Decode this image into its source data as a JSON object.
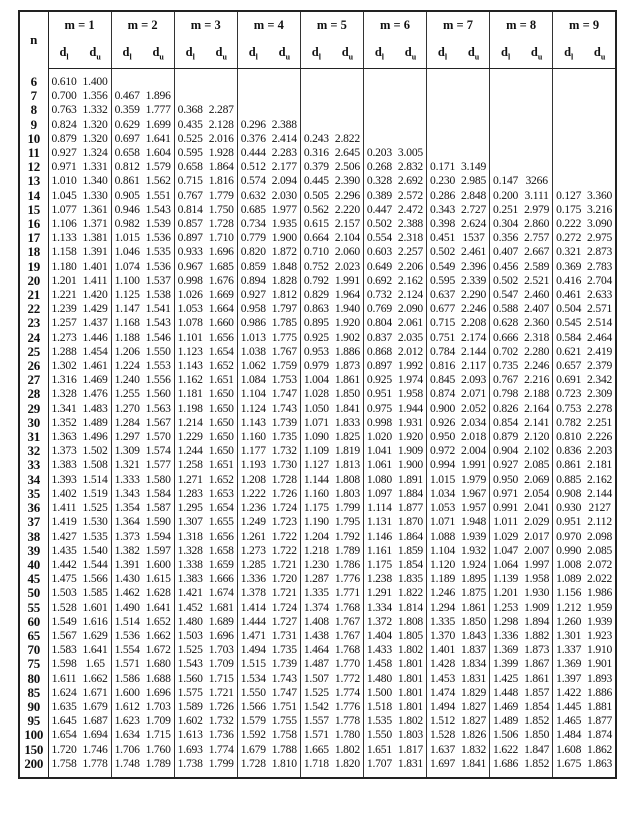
{
  "header": {
    "n_label": "n",
    "groups": [
      "m = 1",
      "m = 2",
      "m = 3",
      "m = 4",
      "m = 5",
      "m = 6",
      "m = 7",
      "m = 8",
      "m = 9"
    ],
    "dl": {
      "base": "d",
      "sub": "l"
    },
    "du": {
      "base": "d",
      "sub": "u"
    }
  },
  "rows": [
    {
      "n": "6",
      "v": [
        "0.610",
        "1.400"
      ]
    },
    {
      "n": "7",
      "v": [
        "0.700",
        "1.356",
        "0.467",
        "1.896"
      ]
    },
    {
      "n": "8",
      "v": [
        "0.763",
        "1.332",
        "0.359",
        "1.777",
        "0.368",
        "2.287"
      ]
    },
    {
      "n": "9",
      "v": [
        "0.824",
        "1.320",
        "0.629",
        "1.699",
        "0.435",
        "2.128",
        "0.296",
        "2.388"
      ]
    },
    {
      "n": "10",
      "v": [
        "0.879",
        "1.320",
        "0.697",
        "1.641",
        "0.525",
        "2.016",
        "0.376",
        "2.414",
        "0.243",
        "2.822"
      ]
    },
    {
      "n": "11",
      "v": [
        "0.927",
        "1.324",
        "0.658",
        "1.604",
        "0.595",
        "1.928",
        "0.444",
        "2.283",
        "0.316",
        "2.645",
        "0.203",
        "3.005"
      ]
    },
    {
      "n": "12",
      "v": [
        "0.971",
        "1.331",
        "0.812",
        "1.579",
        "0.658",
        "1.864",
        "0.512",
        "2.177",
        "0.379",
        "2.506",
        "0.268",
        "2.832",
        "0.171",
        "3.149"
      ]
    },
    {
      "n": "13",
      "v": [
        "1.010",
        "1.340",
        "0.861",
        "1.562",
        "0.715",
        "1.816",
        "0.574",
        "2.094",
        "0.445",
        "2.390",
        "0.328",
        "2.692",
        "0.230",
        "2.985",
        "0.147",
        "3266"
      ]
    },
    {
      "n": "14",
      "v": [
        "1.045",
        "1.330",
        "0.905",
        "1.551",
        "0.767",
        "1.779",
        "0.632",
        "2.030",
        "0.505",
        "2.296",
        "0.389",
        "2.572",
        "0.286",
        "2.848",
        "0.200",
        "3.111",
        "0.127",
        "3.360"
      ]
    },
    {
      "n": "15",
      "v": [
        "1.077",
        "1.361",
        "0.946",
        "1.543",
        "0.814",
        "1.750",
        "0.685",
        "1.977",
        "0.562",
        "2.220",
        "0.447",
        "2.472",
        "0.343",
        "2.727",
        "0.251",
        "2.979",
        "0.175",
        "3.216"
      ]
    },
    {
      "n": "16",
      "v": [
        "1.106",
        "1.371",
        "0.982",
        "1.539",
        "0.857",
        "1.728",
        "0.734",
        "1.935",
        "0.615",
        "2.157",
        "0.502",
        "2.388",
        "0.398",
        "2.624",
        "0.304",
        "2.860",
        "0.222",
        "3.090"
      ]
    },
    {
      "n": "17",
      "v": [
        "1.133",
        "1.381",
        "1.015",
        "1.536",
        "0.897",
        "1.710",
        "0.779",
        "1.900",
        "0.664",
        "2.104",
        "0.554",
        "2.318",
        "0.451",
        "1537",
        "0.356",
        "2.757",
        "0.272",
        "2.975"
      ]
    },
    {
      "n": "18",
      "v": [
        "1.158",
        "1.391",
        "1.046",
        "1.535",
        "0.933",
        "1.696",
        "0.820",
        "1.872",
        "0.710",
        "2.060",
        "0.603",
        "2.257",
        "0.502",
        "2.461",
        "0.407",
        "2.667",
        "0.321",
        "2.873"
      ]
    },
    {
      "n": "19",
      "v": [
        "1.180",
        "1.401",
        "1.074",
        "1.536",
        "0.967",
        "1.685",
        "0.859",
        "1.848",
        "0.752",
        "2.023",
        "0.649",
        "2.206",
        "0.549",
        "2.396",
        "0.456",
        "2.589",
        "0.369",
        "2.783"
      ]
    },
    {
      "n": "20",
      "v": [
        "1.201",
        "1.411",
        "1.100",
        "1.537",
        "0.998",
        "1.676",
        "0.894",
        "1.828",
        "0.792",
        "1.991",
        "0.692",
        "2.162",
        "0.595",
        "2.339",
        "0.502",
        "2.521",
        "0.416",
        "2.704"
      ]
    },
    {
      "n": "21",
      "v": [
        "1.221",
        "1.420",
        "1.125",
        "1.538",
        "1.026",
        "1.669",
        "0.927",
        "1.812",
        "0.829",
        "1.964",
        "0.732",
        "2.124",
        "0.637",
        "2.290",
        "0.547",
        "2.460",
        "0.461",
        "2.633"
      ]
    },
    {
      "n": "22",
      "v": [
        "1.239",
        "1.429",
        "1.147",
        "1.541",
        "1.053",
        "1.664",
        "0.958",
        "1.797",
        "0.863",
        "1.940",
        "0.769",
        "2.090",
        "0.677",
        "2.246",
        "0.588",
        "2.407",
        "0.504",
        "2.571"
      ]
    },
    {
      "n": "23",
      "v": [
        "1.257",
        "1.437",
        "1.168",
        "1.543",
        "1.078",
        "1.660",
        "0.986",
        "1.785",
        "0.895",
        "1.920",
        "0.804",
        "2.061",
        "0.715",
        "2.208",
        "0.628",
        "2.360",
        "0.545",
        "2.514"
      ]
    },
    {
      "n": "24",
      "v": [
        "1.273",
        "1.446",
        "1.188",
        "1.546",
        "1.101",
        "1.656",
        "1.013",
        "1.775",
        "0.925",
        "1.902",
        "0.837",
        "2.035",
        "0.751",
        "2.174",
        "0.666",
        "2.318",
        "0.584",
        "2.464"
      ]
    },
    {
      "n": "25",
      "v": [
        "1.288",
        "1.454",
        "1.206",
        "1.550",
        "1.123",
        "1.654",
        "1.038",
        "1.767",
        "0.953",
        "1.886",
        "0.868",
        "2.012",
        "0.784",
        "2.144",
        "0.702",
        "2.280",
        "0.621",
        "2.419"
      ]
    },
    {
      "n": "26",
      "v": [
        "1.302",
        "1.461",
        "1.224",
        "1.553",
        "1.143",
        "1.652",
        "1.062",
        "1.759",
        "0.979",
        "1.873",
        "0.897",
        "1.992",
        "0.816",
        "2.117",
        "0.735",
        "2.246",
        "0.657",
        "2.379"
      ]
    },
    {
      "n": "27",
      "v": [
        "1.316",
        "1.469",
        "1.240",
        "1.556",
        "1.162",
        "1.651",
        "1.084",
        "1.753",
        "1.004",
        "1.861",
        "0.925",
        "1.974",
        "0.845",
        "2.093",
        "0.767",
        "2.216",
        "0.691",
        "2.342"
      ]
    },
    {
      "n": "28",
      "v": [
        "1.328",
        "1.476",
        "1.255",
        "1.560",
        "1.181",
        "1.650",
        "1.104",
        "1.747",
        "1.028",
        "1.850",
        "0.951",
        "1.958",
        "0.874",
        "2.071",
        "0.798",
        "2.188",
        "0.723",
        "2.309"
      ]
    },
    {
      "n": "29",
      "v": [
        "1.341",
        "1.483",
        "1.270",
        "1.563",
        "1.198",
        "1.650",
        "1.124",
        "1.743",
        "1.050",
        "1.841",
        "0.975",
        "1.944",
        "0.900",
        "2.052",
        "0.826",
        "2.164",
        "0.753",
        "2.278"
      ]
    },
    {
      "n": "30",
      "v": [
        "1.352",
        "1.489",
        "1.284",
        "1.567",
        "1.214",
        "1.650",
        "1.143",
        "1.739",
        "1.071",
        "1.833",
        "0.998",
        "1.931",
        "0.926",
        "2.034",
        "0.854",
        "2.141",
        "0.782",
        "2.251"
      ]
    },
    {
      "n": "31",
      "v": [
        "1.363",
        "1.496",
        "1.297",
        "1.570",
        "1.229",
        "1.650",
        "1.160",
        "1.735",
        "1.090",
        "1.825",
        "1.020",
        "1.920",
        "0.950",
        "2.018",
        "0.879",
        "2.120",
        "0.810",
        "2.226"
      ]
    },
    {
      "n": "32",
      "v": [
        "1.373",
        "1.502",
        "1.309",
        "1.574",
        "1.244",
        "1.650",
        "1.177",
        "1.732",
        "1.109",
        "1.819",
        "1.041",
        "1.909",
        "0.972",
        "2.004",
        "0.904",
        "2.102",
        "0.836",
        "2.203"
      ]
    },
    {
      "n": "33",
      "v": [
        "1.383",
        "1.508",
        "1.321",
        "1.577",
        "1.258",
        "1.651",
        "1.193",
        "1.730",
        "1.127",
        "1.813",
        "1.061",
        "1.900",
        "0.994",
        "1.991",
        "0.927",
        "2.085",
        "0.861",
        "2.181"
      ]
    },
    {
      "n": "34",
      "v": [
        "1.393",
        "1.514",
        "1.333",
        "1.580",
        "1.271",
        "1.652",
        "1.208",
        "1.728",
        "1.144",
        "1.808",
        "1.080",
        "1.891",
        "1.015",
        "1.979",
        "0.950",
        "2.069",
        "0.885",
        "2.162"
      ]
    },
    {
      "n": "35",
      "v": [
        "1.402",
        "1.519",
        "1.343",
        "1.584",
        "1.283",
        "1.653",
        "1.222",
        "1.726",
        "1.160",
        "1.803",
        "1.097",
        "1.884",
        "1.034",
        "1.967",
        "0.971",
        "2.054",
        "0.908",
        "2.144"
      ]
    },
    {
      "n": "36",
      "v": [
        "1.411",
        "1.525",
        "1.354",
        "1.587",
        "1.295",
        "1.654",
        "1.236",
        "1.724",
        "1.175",
        "1.799",
        "1.114",
        "1.877",
        "1.053",
        "1.957",
        "0.991",
        "2.041",
        "0.930",
        "2127"
      ]
    },
    {
      "n": "37",
      "v": [
        "1.419",
        "1.530",
        "1.364",
        "1.590",
        "1.307",
        "1.655",
        "1.249",
        "1.723",
        "1.190",
        "1.795",
        "1.131",
        "1.870",
        "1.071",
        "1.948",
        "1.011",
        "2.029",
        "0.951",
        "2.112"
      ]
    },
    {
      "n": "38",
      "v": [
        "1.427",
        "1.535",
        "1.373",
        "1.594",
        "1.318",
        "1.656",
        "1.261",
        "1.722",
        "1.204",
        "1.792",
        "1.146",
        "1.864",
        "1.088",
        "1.939",
        "1.029",
        "2.017",
        "0.970",
        "2.098"
      ]
    },
    {
      "n": "39",
      "v": [
        "1.435",
        "1.540",
        "1.382",
        "1.597",
        "1.328",
        "1.658",
        "1.273",
        "1.722",
        "1.218",
        "1.789",
        "1.161",
        "1.859",
        "1.104",
        "1.932",
        "1.047",
        "2.007",
        "0.990",
        "2.085"
      ]
    },
    {
      "n": "40",
      "v": [
        "1.442",
        "1.544",
        "1.391",
        "1.600",
        "1.338",
        "1.659",
        "1.285",
        "1.721",
        "1.230",
        "1.786",
        "1.175",
        "1.854",
        "1.120",
        "1.924",
        "1.064",
        "1.997",
        "1.008",
        "2.072"
      ]
    },
    {
      "n": "45",
      "v": [
        "1.475",
        "1.566",
        "1.430",
        "1.615",
        "1.383",
        "1.666",
        "1.336",
        "1.720",
        "1.287",
        "1.776",
        "1.238",
        "1.835",
        "1.189",
        "1.895",
        "1.139",
        "1.958",
        "1.089",
        "2.022"
      ]
    },
    {
      "n": "50",
      "v": [
        "1.503",
        "1.585",
        "1.462",
        "1.628",
        "1.421",
        "1.674",
        "1.378",
        "1.721",
        "1.335",
        "1.771",
        "1.291",
        "1.822",
        "1.246",
        "1.875",
        "1.201",
        "1.930",
        "1.156",
        "1.986"
      ]
    },
    {
      "n": "55",
      "v": [
        "1.528",
        "1.601",
        "1.490",
        "1.641",
        "1.452",
        "1.681",
        "1.414",
        "1.724",
        "1.374",
        "1.768",
        "1.334",
        "1.814",
        "1.294",
        "1.861",
        "1.253",
        "1.909",
        "1.212",
        "1.959"
      ]
    },
    {
      "n": "60",
      "v": [
        "1.549",
        "1.616",
        "1.514",
        "1.652",
        "1.480",
        "1.689",
        "1.444",
        "1.727",
        "1.408",
        "1.767",
        "1.372",
        "1.808",
        "1.335",
        "1.850",
        "1.298",
        "1.894",
        "1.260",
        "1.939"
      ]
    },
    {
      "n": "65",
      "v": [
        "1.567",
        "1.629",
        "1.536",
        "1.662",
        "1.503",
        "1.696",
        "1.471",
        "1.731",
        "1.438",
        "1.767",
        "1.404",
        "1.805",
        "1.370",
        "1.843",
        "1.336",
        "1.882",
        "1.301",
        "1.923"
      ]
    },
    {
      "n": "70",
      "v": [
        "1.583",
        "1.641",
        "1.554",
        "1.672",
        "1.525",
        "1.703",
        "1.494",
        "1.735",
        "1.464",
        "1.768",
        "1.433",
        "1.802",
        "1.401",
        "1.837",
        "1.369",
        "1.873",
        "1.337",
        "1.910"
      ]
    },
    {
      "n": "75",
      "v": [
        "1.598",
        "1.65",
        "1.571",
        "1.680",
        "1.543",
        "1.709",
        "1.515",
        "1.739",
        "1.487",
        "1.770",
        "1.458",
        "1.801",
        "1.428",
        "1.834",
        "1.399",
        "1.867",
        "1.369",
        "1.901"
      ]
    },
    {
      "n": "80",
      "v": [
        "1.611",
        "1.662",
        "1.586",
        "1.688",
        "1.560",
        "1.715",
        "1.534",
        "1.743",
        "1.507",
        "1.772",
        "1.480",
        "1.801",
        "1.453",
        "1.831",
        "1.425",
        "1.861",
        "1.397",
        "1.893"
      ]
    },
    {
      "n": "85",
      "v": [
        "1.624",
        "1.671",
        "1.600",
        "1.696",
        "1.575",
        "1.721",
        "1.550",
        "1.747",
        "1.525",
        "1.774",
        "1.500",
        "1.801",
        "1.474",
        "1.829",
        "1.448",
        "1.857",
        "1.422",
        "1.886"
      ]
    },
    {
      "n": "90",
      "v": [
        "1.635",
        "1.679",
        "1.612",
        "1.703",
        "1.589",
        "1.726",
        "1.566",
        "1.751",
        "1.542",
        "1.776",
        "1.518",
        "1.801",
        "1.494",
        "1.827",
        "1.469",
        "1.854",
        "1.445",
        "1.881"
      ]
    },
    {
      "n": "95",
      "v": [
        "1.645",
        "1.687",
        "1.623",
        "1.709",
        "1.602",
        "1.732",
        "1.579",
        "1.755",
        "1.557",
        "1.778",
        "1.535",
        "1.802",
        "1.512",
        "1.827",
        "1.489",
        "1.852",
        "1.465",
        "1.877"
      ]
    },
    {
      "n": "100",
      "v": [
        "1.654",
        "1.694",
        "1.634",
        "1.715",
        "1.613",
        "1.736",
        "1.592",
        "1.758",
        "1.571",
        "1.780",
        "1.550",
        "1.803",
        "1.528",
        "1.826",
        "1.506",
        "1.850",
        "1.484",
        "1.874"
      ]
    },
    {
      "n": "150",
      "v": [
        "1.720",
        "1.746",
        "1.706",
        "1.760",
        "1.693",
        "1.774",
        "1.679",
        "1.788",
        "1.665",
        "1.802",
        "1.651",
        "1.817",
        "1.637",
        "1.832",
        "1.622",
        "1.847",
        "1.608",
        "1.862"
      ]
    },
    {
      "n": "200",
      "v": [
        "1.758",
        "1.778",
        "1.748",
        "1.789",
        "1.738",
        "1.799",
        "1.728",
        "1.810",
        "1.718",
        "1.820",
        "1.707",
        "1.831",
        "1.697",
        "1.841",
        "1.686",
        "1.852",
        "1.675",
        "1.863"
      ]
    }
  ]
}
